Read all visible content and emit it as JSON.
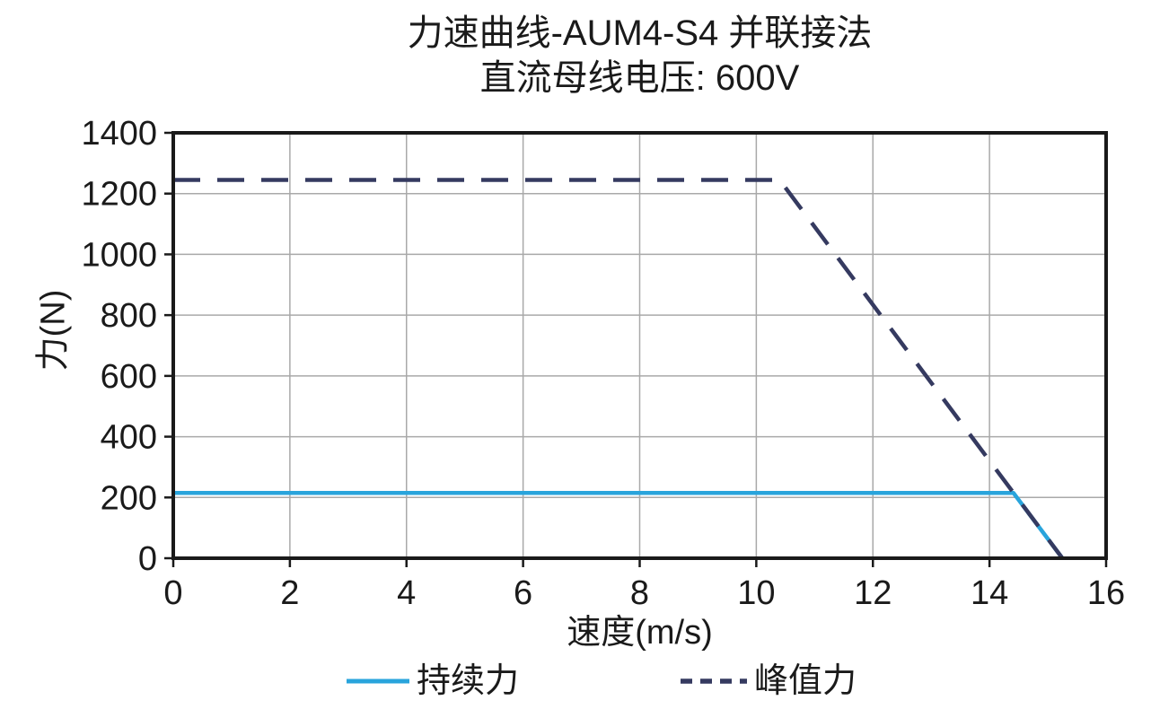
{
  "chart_data": {
    "type": "line",
    "title": "力速曲线-AUM4-S4 并联接法",
    "subtitle": "直流母线电压: 600V",
    "xlabel": "速度(m/s)",
    "ylabel": "力(N)",
    "xlim": [
      0,
      16
    ],
    "ylim": [
      0,
      1400
    ],
    "xticks": [
      0,
      2,
      4,
      6,
      8,
      10,
      12,
      14,
      16
    ],
    "yticks": [
      0,
      200,
      400,
      600,
      800,
      1000,
      1200,
      1400
    ],
    "grid": true,
    "legend_position": "bottom",
    "series": [
      {
        "name": "持续力",
        "style": "solid",
        "color": "#29A4DC",
        "stroke_width": 4.5,
        "points": [
          [
            0,
            215
          ],
          [
            14.41,
            215
          ],
          [
            15.25,
            0
          ]
        ]
      },
      {
        "name": "峰值力",
        "style": "dashed",
        "color": "#353A60",
        "stroke_width": 4.5,
        "points": [
          [
            0,
            1245
          ],
          [
            10.4,
            1245
          ],
          [
            15.25,
            0
          ]
        ]
      }
    ],
    "colors": {
      "grid": "#A9A9A9",
      "axis": "#1A1A1A",
      "text": "#1A1A1A",
      "background": "#FFFFFF"
    }
  }
}
